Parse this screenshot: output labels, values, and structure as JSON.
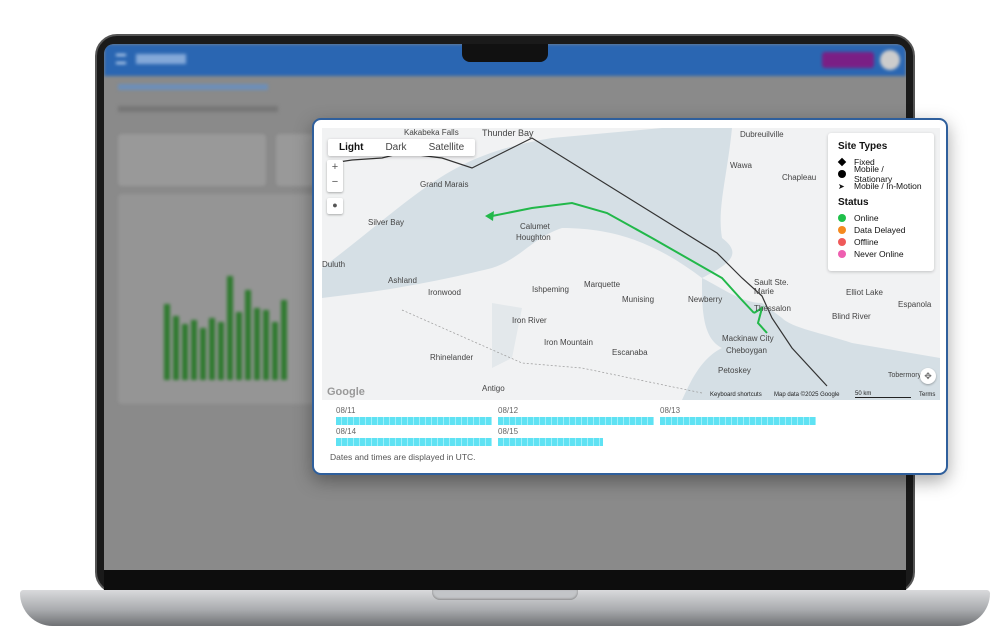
{
  "map": {
    "style_tabs": [
      {
        "label": "Light",
        "active": true
      },
      {
        "label": "Dark",
        "active": false
      },
      {
        "label": "Satellite",
        "active": false
      }
    ],
    "zoom_in": "+",
    "zoom_out": "−",
    "places": [
      "Thunder Bay",
      "Kakabeka Falls",
      "Grand Marais",
      "Silver Bay",
      "Duluth",
      "Ashland",
      "Ironwood",
      "Calumet",
      "Houghton",
      "Marquette",
      "Ishpeming",
      "Munising",
      "Newberry",
      "Iron River",
      "Iron Mountain",
      "Escanaba",
      "Rhinelander",
      "Dubreuilville",
      "Wawa",
      "Chapleau",
      "Sault Ste. Marie",
      "Thessalon",
      "Elliot Lake",
      "Espanola",
      "Blind River",
      "Mackinaw City",
      "Cheboygan",
      "Petoskey",
      "Antigo",
      "Tobermory"
    ],
    "attribution": {
      "logo": "Google",
      "shortcuts": "Keyboard shortcuts",
      "data": "Map data ©2025 Google",
      "scale": "50 km",
      "terms": "Terms"
    },
    "track_color": "#22b84a"
  },
  "legend": {
    "site_types_title": "Site Types",
    "site_types": [
      {
        "label": "Fixed",
        "icon": "diamond-icon"
      },
      {
        "label": "Mobile / Stationary",
        "icon": "circle-icon"
      },
      {
        "label": "Mobile / In-Motion",
        "icon": "navigation-arrow-icon"
      }
    ],
    "status_title": "Status",
    "statuses": [
      {
        "label": "Online",
        "color": "#1fc04a"
      },
      {
        "label": "Data Delayed",
        "color": "#f58a1f"
      },
      {
        "label": "Offline",
        "color": "#ef5a5a"
      },
      {
        "label": "Never Online",
        "color": "#ee5fb0"
      }
    ]
  },
  "timeline": {
    "days": [
      {
        "date": "08/11",
        "fill": 1.0
      },
      {
        "date": "08/12",
        "fill": 1.0
      },
      {
        "date": "08/13",
        "fill": 1.0
      },
      {
        "date": "08/14",
        "fill": 1.0
      },
      {
        "date": "08/15",
        "fill": 0.67
      }
    ],
    "bar_color": "#5fe2f3",
    "note": "Dates and times are displayed in UTC."
  }
}
